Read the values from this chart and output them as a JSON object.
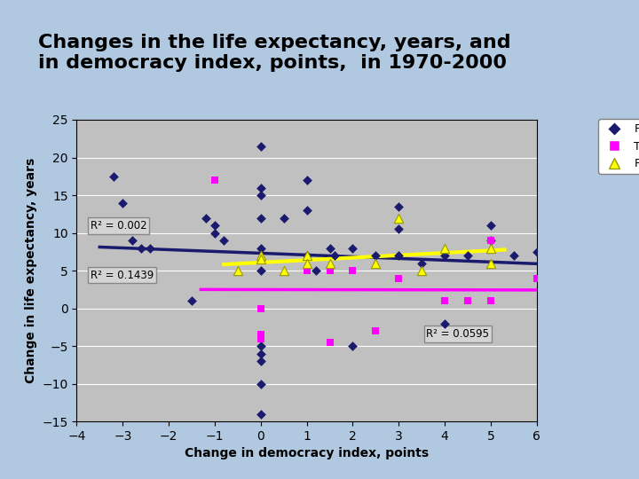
{
  "title": "Changes in the life expectancy, years, and\nin democracy index, points,  in 1970-2000",
  "xlabel": "Change in democracy index, points",
  "ylabel": "Change in life expectancy, years",
  "xlim": [
    -4,
    6
  ],
  "ylim": [
    -15,
    25
  ],
  "xticks": [
    -4,
    -3,
    -2,
    -1,
    0,
    1,
    2,
    3,
    4,
    5,
    6
  ],
  "yticks": [
    -15,
    -10,
    -5,
    0,
    5,
    10,
    15,
    20,
    25
  ],
  "bg_color": "#c0c0c0",
  "title_bg": "#b0c8e0",
  "poor_x": [
    -3.2,
    -3.0,
    -2.8,
    -2.6,
    -2.4,
    -1.5,
    -1.2,
    -1.0,
    -1.0,
    -0.8,
    0,
    0,
    0,
    0,
    0,
    0,
    0,
    0,
    0,
    0,
    0,
    0.5,
    1,
    1,
    1.0,
    1.2,
    1.5,
    1.6,
    2,
    2,
    2.5,
    3,
    3,
    3,
    3.5,
    4,
    4,
    4.5,
    5,
    5,
    5.5,
    6
  ],
  "poor_y": [
    17.5,
    14,
    9,
    8,
    8,
    1,
    12,
    11,
    10,
    9,
    21.5,
    16,
    15,
    12,
    8,
    5,
    -5,
    -6,
    -7,
    -10,
    -14,
    12,
    17,
    13,
    7,
    5,
    8,
    7,
    8,
    -5,
    7,
    13.5,
    10.5,
    7,
    6,
    7,
    -2,
    7,
    11,
    9,
    7,
    7.5
  ],
  "transition_x": [
    -1.0,
    0,
    0,
    0,
    1,
    1.5,
    1.5,
    2,
    2.5,
    3,
    4,
    4.5,
    5,
    5,
    6
  ],
  "transition_y": [
    17,
    0,
    -3.5,
    -4,
    5,
    5,
    -4.5,
    5,
    -3,
    4,
    1,
    1,
    1,
    9,
    4
  ],
  "rich_x": [
    -0.5,
    0,
    0,
    0.5,
    1,
    1,
    1.5,
    2.5,
    3,
    3.5,
    4,
    5,
    5
  ],
  "rich_y": [
    5,
    7,
    6.5,
    5,
    7,
    6,
    6,
    6,
    12,
    5,
    8,
    6,
    8
  ],
  "poor_color": "#1a1a6e",
  "transition_color": "#ff00ff",
  "rich_color": "#ffff00",
  "rich_edge_color": "#999900",
  "r2_poor": "0.002",
  "r2_transition": "0.1439",
  "r2_rich": "0.0595"
}
